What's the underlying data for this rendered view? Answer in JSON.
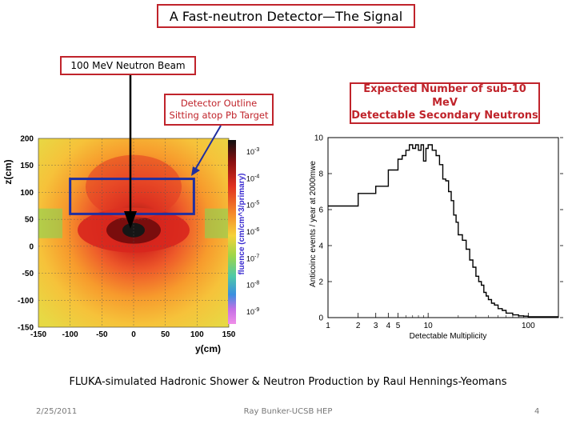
{
  "slide": {
    "title": "A Fast-neutron Detector—The Signal",
    "beam_label": "100 MeV Neutron Beam",
    "detector_callout": [
      "Detector Outline",
      "Sitting atop Pb Target"
    ],
    "expected_callout": [
      "Expected Number of sub-10 MeV",
      "Detectable Secondary Neutrons"
    ],
    "caption": "FLUKA-simulated Hadronic Shower & Neutron Production by Raul Hennings-Yeomans",
    "footer_date": "2/25/2011",
    "footer_author": "Ray Bunker-UCSB HEP",
    "page_number": "4"
  },
  "colors": {
    "accent_red": "#c0242b",
    "detector_blue": "#1f2fa0"
  },
  "chart_data": [
    {
      "type": "heatmap",
      "xlabel": "y(cm)",
      "ylabel": "z(cm)",
      "xlim": [
        -150,
        150
      ],
      "ylim": [
        -150,
        200
      ],
      "x_ticks": [
        "-150",
        "-100",
        "-50",
        "0",
        "50",
        "100",
        "150"
      ],
      "y_ticks": [
        "200",
        "150",
        "100",
        "50",
        "0",
        "-50",
        "-100",
        "-150"
      ],
      "colorbar_label": "fluence (cm/cm^3/primary)",
      "colorbar_ticks": [
        "10^{-3}",
        "10^{-4}",
        "10^{-5}",
        "10^{-6}",
        "10^{-7}",
        "10^{-8}",
        "10^{-9}"
      ],
      "detector_outline": {
        "y_range": [
          -100,
          95
        ],
        "z_range": [
          60,
          125
        ]
      },
      "beam_axis_y": 0
    },
    {
      "type": "line",
      "xlabel": "Detectable Multiplicity",
      "ylabel": "Anticoinc events / year at 2000mwe",
      "x_scale": "log",
      "xlim": [
        1,
        200
      ],
      "ylim": [
        0,
        10
      ],
      "x_ticks": [
        "1",
        "2",
        "3",
        "4",
        "5",
        "10",
        "100"
      ],
      "y_ticks": [
        "0",
        "2",
        "4",
        "6",
        "8",
        "10"
      ],
      "x": [
        1,
        1.5,
        2,
        2.5,
        3,
        3.5,
        4,
        4.5,
        5,
        5.5,
        6,
        6.5,
        7,
        7.5,
        8,
        8.5,
        9,
        9.5,
        10,
        11,
        12,
        13,
        14,
        15,
        16,
        17,
        18,
        19,
        20,
        22,
        24,
        26,
        28,
        30,
        32,
        34,
        36,
        38,
        40,
        43,
        46,
        50,
        55,
        60,
        70,
        80,
        90,
        100,
        110
      ],
      "y": [
        6.2,
        6.2,
        6.9,
        6.9,
        7.3,
        7.3,
        8.2,
        8.2,
        8.8,
        9.0,
        9.3,
        9.6,
        9.4,
        9.6,
        9.3,
        9.6,
        8.7,
        9.4,
        9.6,
        9.3,
        9.0,
        8.5,
        7.7,
        7.6,
        7.0,
        6.5,
        5.7,
        5.3,
        4.6,
        4.3,
        3.8,
        3.2,
        2.8,
        2.3,
        2.0,
        1.8,
        1.4,
        1.2,
        1.0,
        0.8,
        0.7,
        0.5,
        0.4,
        0.25,
        0.15,
        0.1,
        0.08,
        0.05,
        0.05
      ]
    }
  ]
}
